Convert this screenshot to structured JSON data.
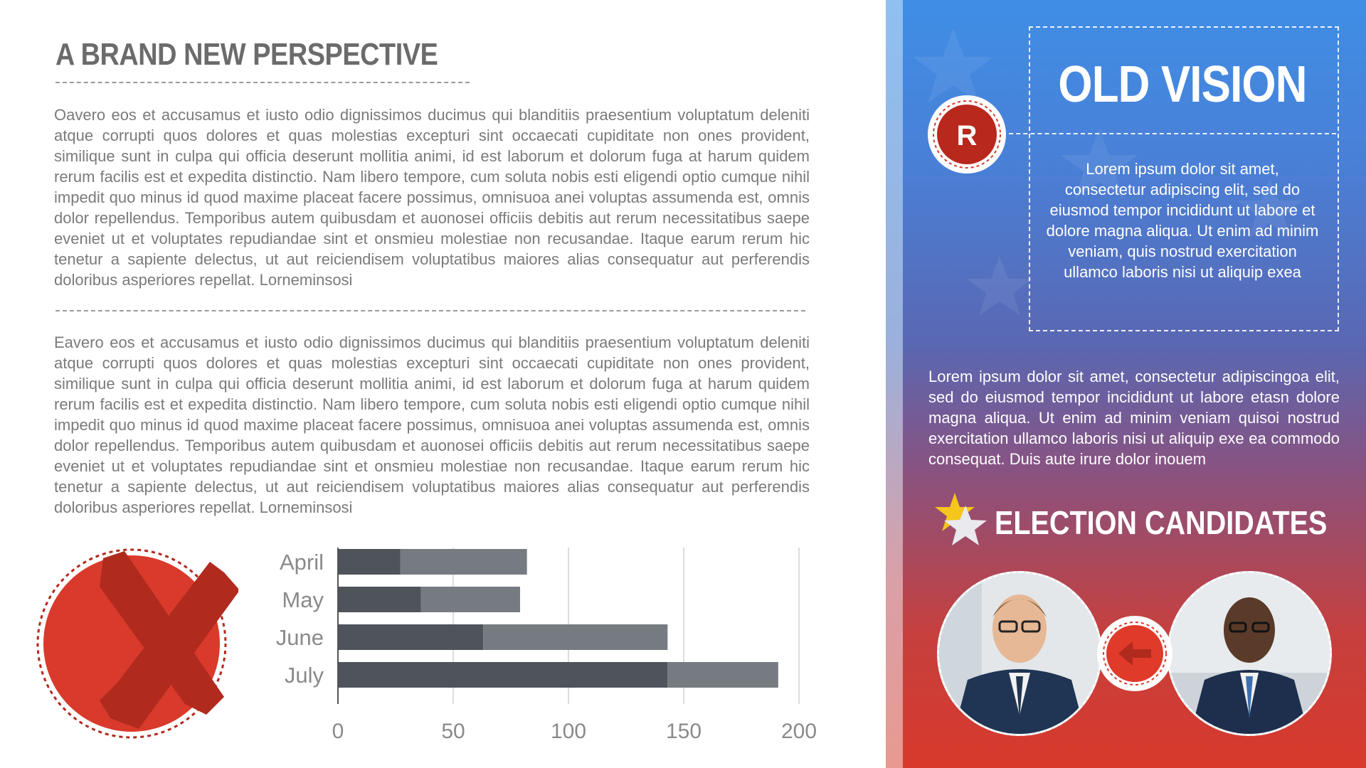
{
  "left": {
    "title": "A BRAND NEW PERSPECTIVE",
    "paragraph1": "Oavero eos et accusamus et iusto odio dignissimos ducimus qui blanditiis praesentium voluptatum deleniti atque corrupti quos dolores et quas molestias excepturi sint occaecati cupiditate non ones provident, similique sunt in culpa qui officia deserunt mollitia animi, id est laborum et dolorum fuga at harum quidem rerum facilis est et expedita distinctio. Nam libero tempore, cum soluta nobis esti eligendi optio cumque nihil impedit quo minus id quod maxime placeat facere possimus, omnisuoa anei voluptas assumenda est, omnis dolor repellendus. Temporibus autem quibusdam et auonosei officiis debitis aut rerum necessitatibus saepe eveniet ut et voluptates repudiandae sint et onsmieu molestiae non recusandae. Itaque earum rerum hic tenetur a sapiente delectus, ut aut reiciendisem voluptatibus maiores alias consequatur aut perferendis doloribus asperiores repellat. Lorneminsosi",
    "paragraph2": "Eavero eos et accusamus et iusto odio dignissimos ducimus qui blanditiis praesentium voluptatum deleniti atque corrupti quos dolores et quas molestias excepturi sint occaecati cupiditate non ones provident, similique sunt in culpa qui officia deserunt mollitia animi, id est laborum et dolorum fuga at harum quidem rerum facilis est et expedita distinctio. Nam libero tempore, cum soluta nobis esti eligendi optio cumque nihil impedit quo minus id quod maxime placeat facere possimus, omnisuoa anei voluptas assumenda est, omnis dolor repellendus. Temporibus autem quibusdam et auonosei officiis debitis aut rerum necessitatibus saepe eveniet ut et voluptates repudiandae sint et onsmieu molestiae non recusandae. Itaque earum rerum hic tenetur a sapiente delectus, ut aut reiciendisem voluptatibus maiores alias consequatur aut perferendis doloribus asperiores repellat. Lorneminsosi",
    "reject_icon": "red-x-mark-icon",
    "reject_color": "#d93a2b"
  },
  "chart_data": {
    "type": "bar",
    "orientation": "horizontal",
    "stacked": true,
    "categories": [
      "April",
      "May",
      "June",
      "July"
    ],
    "series": [
      {
        "values": [
          27,
          36,
          63,
          143
        ],
        "color": "#4f535a"
      },
      {
        "values": [
          55,
          43,
          80,
          48
        ],
        "color": "#767b82"
      }
    ],
    "xlim": [
      0,
      200
    ],
    "xticks": [
      0,
      50,
      100,
      150,
      200
    ],
    "grid": true,
    "legend": "none"
  },
  "right": {
    "badge_letter": "R",
    "vision_title": "OLD VISION",
    "vision_text": "Lorem ipsum dolor sit amet, consectetur adipiscing elit, sed do eiusmod tempor incididunt ut labore et dolore magna aliqua. Ut enim ad minim veniam, quis nostrud exercitation ullamco laboris nisi ut aliquip exea",
    "paragraph": "Lorem ipsum dolor sit amet, consectetur adipiscingoa elit, sed do eiusmod tempor incididunt ut labore etasn dolore magna aliqua. Ut enim ad minim veniam quisoi nostrud exercitation ullamco laboris nisi ut aliquip exe ea commodo consequat. Duis aute irure dolor inouem",
    "candidates_title": "ELECTION CANDIDATES",
    "candidates_icon": "stars-icon",
    "swap_icon": "arrow-left-icon",
    "accent_color": "#d8392b"
  }
}
